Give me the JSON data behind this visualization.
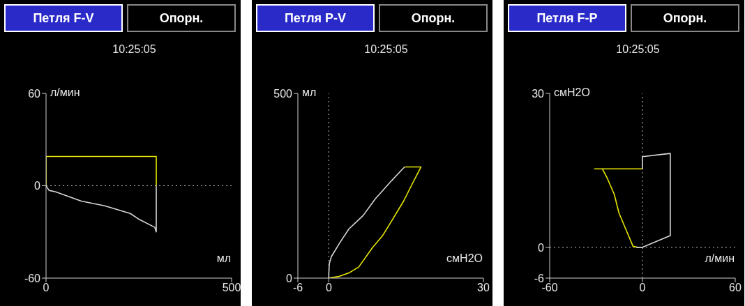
{
  "chart_data": [
    {
      "type": "line",
      "title": "Петля F-V",
      "subtitle": "10:25:05",
      "annotations": [
        "Опорн."
      ],
      "xlabel": "мл",
      "ylabel": "л/мин",
      "xlim": [
        0,
        500
      ],
      "ylim": [
        -60,
        60
      ],
      "xticks": [
        0,
        500
      ],
      "yticks": [
        -60,
        0,
        60
      ],
      "ref_lines": [
        {
          "axis": "y",
          "value": 0,
          "color": "#c0c0c0",
          "line_style": "dotted"
        }
      ],
      "series": [
        {
          "color": "#e8e800",
          "x": [
            0,
            0,
            297,
            297
          ],
          "values": [
            0,
            19,
            19,
            0
          ]
        },
        {
          "color": "#d8d8d8",
          "x": [
            297,
            297,
            293,
            252,
            227,
            158,
            95,
            26,
            8,
            0
          ],
          "values": [
            0,
            -30,
            -27,
            -22,
            -18,
            -13,
            -10,
            -4,
            -3,
            0
          ]
        }
      ]
    },
    {
      "type": "line",
      "title": "Петля P-V",
      "subtitle": "10:25:05",
      "annotations": [
        "Опорн."
      ],
      "xlabel": "смH2O",
      "ylabel": "мл",
      "xlim": [
        -6,
        30
      ],
      "ylim": [
        0,
        500
      ],
      "xticks": [
        -6,
        0,
        30
      ],
      "yticks": [
        0,
        500
      ],
      "ref_lines": [
        {
          "axis": "x",
          "value": 0,
          "color": "#c0c0c0",
          "line_style": "dotted"
        }
      ],
      "series": [
        {
          "color": "#e8e800",
          "x": [
            0,
            2.1,
            3.9,
            5.8,
            8.5,
            10.4,
            12.2,
            14.5,
            16.3,
            17.9,
            14.7
          ],
          "values": [
            0,
            5,
            14,
            30,
            83,
            114,
            155,
            208,
            258,
            301,
            301
          ]
        },
        {
          "color": "#d8d8d8",
          "x": [
            14.7,
            12.2,
            9,
            6.7,
            3.9,
            2.1,
            0.5,
            0.1,
            0,
            0
          ],
          "values": [
            301,
            264,
            214,
            170,
            133,
            95,
            58,
            39,
            8,
            0
          ]
        }
      ]
    },
    {
      "type": "line",
      "title": "Петля F-P",
      "subtitle": "10:25:05",
      "annotations": [
        "Опорн."
      ],
      "xlabel": "л/мин",
      "ylabel": "смH2O",
      "xlim": [
        -60,
        60
      ],
      "ylim": [
        -6,
        30
      ],
      "xticks": [
        -60,
        0,
        60
      ],
      "yticks": [
        -6,
        0,
        30
      ],
      "ref_lines": [
        {
          "axis": "y",
          "value": 0,
          "color": "#c0c0c0",
          "line_style": "dotted"
        },
        {
          "axis": "x",
          "value": 0,
          "color": "#c0c0c0",
          "line_style": "dotted"
        }
      ],
      "series": [
        {
          "color": "#e8e800",
          "x": [
            0,
            -31,
            -26,
            -22.8,
            -18.2,
            -15.2,
            -10.6,
            -6.1,
            -3
          ],
          "values": [
            15.3,
            15.3,
            15.3,
            13.5,
            10.3,
            6.7,
            3.4,
            0.2,
            0
          ]
        },
        {
          "color": "#d8d8d8",
          "x": [
            -4,
            0,
            18,
            18,
            12,
            1,
            0,
            0
          ],
          "values": [
            0,
            0,
            2.3,
            18.3,
            18.1,
            17.7,
            17.7,
            15.3
          ]
        }
      ]
    }
  ]
}
